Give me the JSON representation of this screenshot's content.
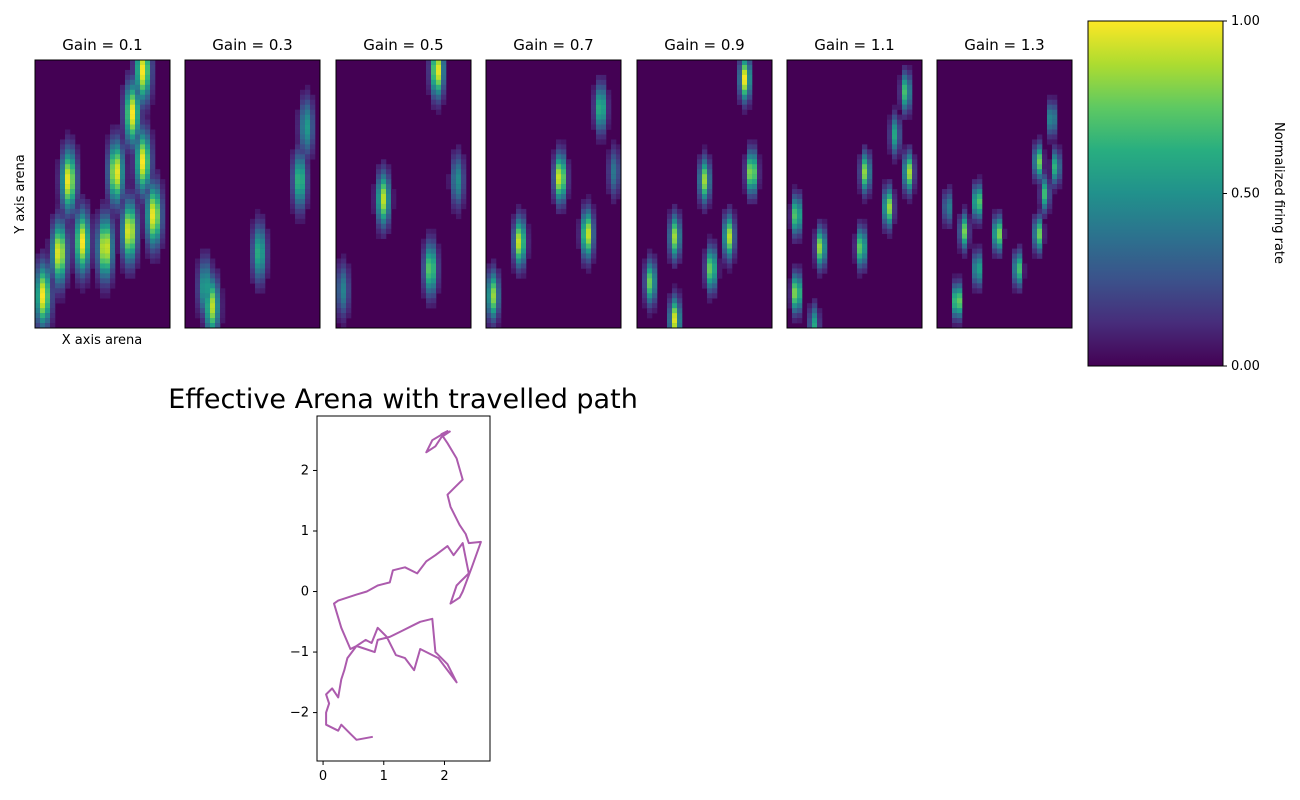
{
  "chart_data": [
    {
      "type": "heatmap",
      "panels": [
        {
          "title": "Gain = 0.1",
          "gain": 0.1,
          "blobs": [
            {
              "x": 0.06,
              "y": 0.12,
              "v": 1.0
            },
            {
              "x": 0.18,
              "y": 0.28,
              "v": 1.0
            },
            {
              "x": 0.35,
              "y": 0.32,
              "v": 1.0
            },
            {
              "x": 0.52,
              "y": 0.3,
              "v": 1.0
            },
            {
              "x": 0.7,
              "y": 0.36,
              "v": 1.0
            },
            {
              "x": 0.88,
              "y": 0.42,
              "v": 1.0
            },
            {
              "x": 0.25,
              "y": 0.55,
              "v": 1.0
            },
            {
              "x": 0.6,
              "y": 0.58,
              "v": 1.0
            },
            {
              "x": 0.8,
              "y": 0.62,
              "v": 1.0
            },
            {
              "x": 0.72,
              "y": 0.8,
              "v": 1.0
            },
            {
              "x": 0.8,
              "y": 0.96,
              "v": 1.0
            }
          ]
        },
        {
          "title": "Gain = 0.3",
          "gain": 0.3,
          "blobs": [
            {
              "x": 0.2,
              "y": 0.08,
              "v": 0.9
            },
            {
              "x": 0.15,
              "y": 0.15,
              "v": 0.6
            },
            {
              "x": 0.55,
              "y": 0.28,
              "v": 0.65
            },
            {
              "x": 0.85,
              "y": 0.55,
              "v": 0.7
            },
            {
              "x": 0.9,
              "y": 0.75,
              "v": 0.55
            }
          ]
        },
        {
          "title": "Gain = 0.5",
          "gain": 0.5,
          "blobs": [
            {
              "x": 0.05,
              "y": 0.14,
              "v": 0.45
            },
            {
              "x": 0.7,
              "y": 0.22,
              "v": 0.8
            },
            {
              "x": 0.9,
              "y": 0.55,
              "v": 0.5
            },
            {
              "x": 0.35,
              "y": 0.48,
              "v": 0.9
            },
            {
              "x": 0.75,
              "y": 0.96,
              "v": 1.0
            }
          ]
        },
        {
          "title": "Gain = 0.7",
          "gain": 0.7,
          "blobs": [
            {
              "x": 0.05,
              "y": 0.12,
              "v": 0.85
            },
            {
              "x": 0.25,
              "y": 0.32,
              "v": 0.95
            },
            {
              "x": 0.75,
              "y": 0.35,
              "v": 0.95
            },
            {
              "x": 0.55,
              "y": 0.56,
              "v": 1.0
            },
            {
              "x": 0.95,
              "y": 0.58,
              "v": 0.4
            },
            {
              "x": 0.85,
              "y": 0.82,
              "v": 0.7
            }
          ]
        },
        {
          "title": "Gain = 0.9",
          "gain": 0.9,
          "blobs": [
            {
              "x": 0.1,
              "y": 0.17,
              "v": 0.8
            },
            {
              "x": 0.28,
              "y": 0.03,
              "v": 0.95
            },
            {
              "x": 0.28,
              "y": 0.34,
              "v": 0.85
            },
            {
              "x": 0.55,
              "y": 0.22,
              "v": 0.85
            },
            {
              "x": 0.68,
              "y": 0.34,
              "v": 0.9
            },
            {
              "x": 0.5,
              "y": 0.55,
              "v": 0.85
            },
            {
              "x": 0.85,
              "y": 0.58,
              "v": 0.95
            },
            {
              "x": 0.8,
              "y": 0.93,
              "v": 1.0
            }
          ]
        },
        {
          "title": "Gain = 1.1",
          "gain": 1.1,
          "blobs": [
            {
              "x": 0.07,
              "y": 0.13,
              "v": 0.95
            },
            {
              "x": 0.25,
              "y": 0.3,
              "v": 0.9
            },
            {
              "x": 0.55,
              "y": 0.3,
              "v": 0.85
            },
            {
              "x": 0.07,
              "y": 0.42,
              "v": 0.85
            },
            {
              "x": 0.75,
              "y": 0.45,
              "v": 0.9
            },
            {
              "x": 0.58,
              "y": 0.58,
              "v": 0.85
            },
            {
              "x": 0.9,
              "y": 0.58,
              "v": 0.9
            },
            {
              "x": 0.8,
              "y": 0.72,
              "v": 0.6
            },
            {
              "x": 0.88,
              "y": 0.88,
              "v": 0.75
            },
            {
              "x": 0.2,
              "y": 0.01,
              "v": 0.6
            }
          ]
        },
        {
          "title": "Gain = 1.3",
          "gain": 1.3,
          "blobs": [
            {
              "x": 0.15,
              "y": 0.1,
              "v": 1.0
            },
            {
              "x": 0.3,
              "y": 0.22,
              "v": 0.7
            },
            {
              "x": 0.2,
              "y": 0.36,
              "v": 0.8
            },
            {
              "x": 0.45,
              "y": 0.35,
              "v": 0.95
            },
            {
              "x": 0.75,
              "y": 0.35,
              "v": 0.85
            },
            {
              "x": 0.6,
              "y": 0.22,
              "v": 0.8
            },
            {
              "x": 0.3,
              "y": 0.47,
              "v": 0.9
            },
            {
              "x": 0.8,
              "y": 0.5,
              "v": 0.7
            },
            {
              "x": 0.88,
              "y": 0.6,
              "v": 0.7
            },
            {
              "x": 0.75,
              "y": 0.62,
              "v": 0.85
            },
            {
              "x": 0.85,
              "y": 0.78,
              "v": 0.6
            },
            {
              "x": 0.08,
              "y": 0.45,
              "v": 0.5
            }
          ]
        }
      ],
      "xlabel": "X axis arena",
      "ylabel": "Y axis arena",
      "colorbar": {
        "label": "Normalized firing rate",
        "range": [
          0,
          1
        ],
        "ticks": [
          "0.00",
          "0.50",
          "1.00"
        ],
        "colormap": "viridis"
      },
      "grid": false
    },
    {
      "type": "line",
      "title": "Effective Arena with travelled path",
      "xlabel": "",
      "ylabel": "",
      "xlim": [
        -0.1,
        2.75
      ],
      "ylim": [
        -2.8,
        2.9
      ],
      "xticks": [
        "0",
        "1",
        "2"
      ],
      "yticks": [
        "2",
        "1",
        "0",
        "−1",
        "−2"
      ],
      "color": "#a349a4",
      "grid": false,
      "series": [
        {
          "x": [
            0.82,
            0.55,
            0.45,
            0.3,
            0.25,
            0.05,
            0.05,
            0.1,
            0.05,
            0.15,
            0.25,
            0.3,
            0.35,
            0.4,
            0.55,
            0.7,
            0.85,
            0.9,
            1.1,
            1.3,
            1.5,
            1.6,
            1.8,
            1.85,
            2.05,
            2.2,
            1.9,
            1.6,
            1.5,
            1.35,
            1.2,
            1.05,
            0.9,
            0.8,
            0.7,
            0.55,
            0.45,
            0.3,
            0.18,
            0.25,
            0.4,
            0.55,
            0.72,
            0.9,
            1.1,
            1.15,
            1.35,
            1.55,
            1.7,
            1.85,
            2.05,
            2.15,
            2.3,
            2.35,
            2.4,
            2.25,
            2.2,
            2.1,
            2.25,
            2.3,
            2.45,
            2.6,
            2.4,
            2.35,
            2.25,
            2.1,
            2.05,
            2.15,
            2.3,
            2.2,
            2.05,
            1.95,
            2.05,
            1.8,
            1.7,
            1.85,
            1.95,
            2.1
          ],
          "y": [
            -2.4,
            -2.45,
            -2.35,
            -2.2,
            -2.3,
            -2.2,
            -2.0,
            -1.85,
            -1.7,
            -1.6,
            -1.75,
            -1.45,
            -1.3,
            -1.1,
            -0.9,
            -0.95,
            -1.0,
            -0.8,
            -0.75,
            -0.65,
            -0.55,
            -0.5,
            -0.45,
            -1.0,
            -1.2,
            -1.5,
            -1.1,
            -0.95,
            -1.3,
            -1.1,
            -1.05,
            -0.75,
            -0.6,
            -0.85,
            -0.8,
            -0.9,
            -0.95,
            -0.6,
            -0.2,
            -0.15,
            -0.1,
            -0.05,
            0.0,
            0.1,
            0.15,
            0.35,
            0.4,
            0.3,
            0.5,
            0.6,
            0.75,
            0.6,
            0.8,
            0.55,
            0.3,
            0.15,
            0.1,
            -0.2,
            -0.1,
            0.0,
            0.4,
            0.82,
            0.8,
            0.95,
            1.1,
            1.4,
            1.6,
            1.7,
            1.85,
            2.2,
            2.45,
            2.6,
            2.65,
            2.5,
            2.3,
            2.4,
            2.55,
            2.65
          ]
        }
      ]
    }
  ]
}
